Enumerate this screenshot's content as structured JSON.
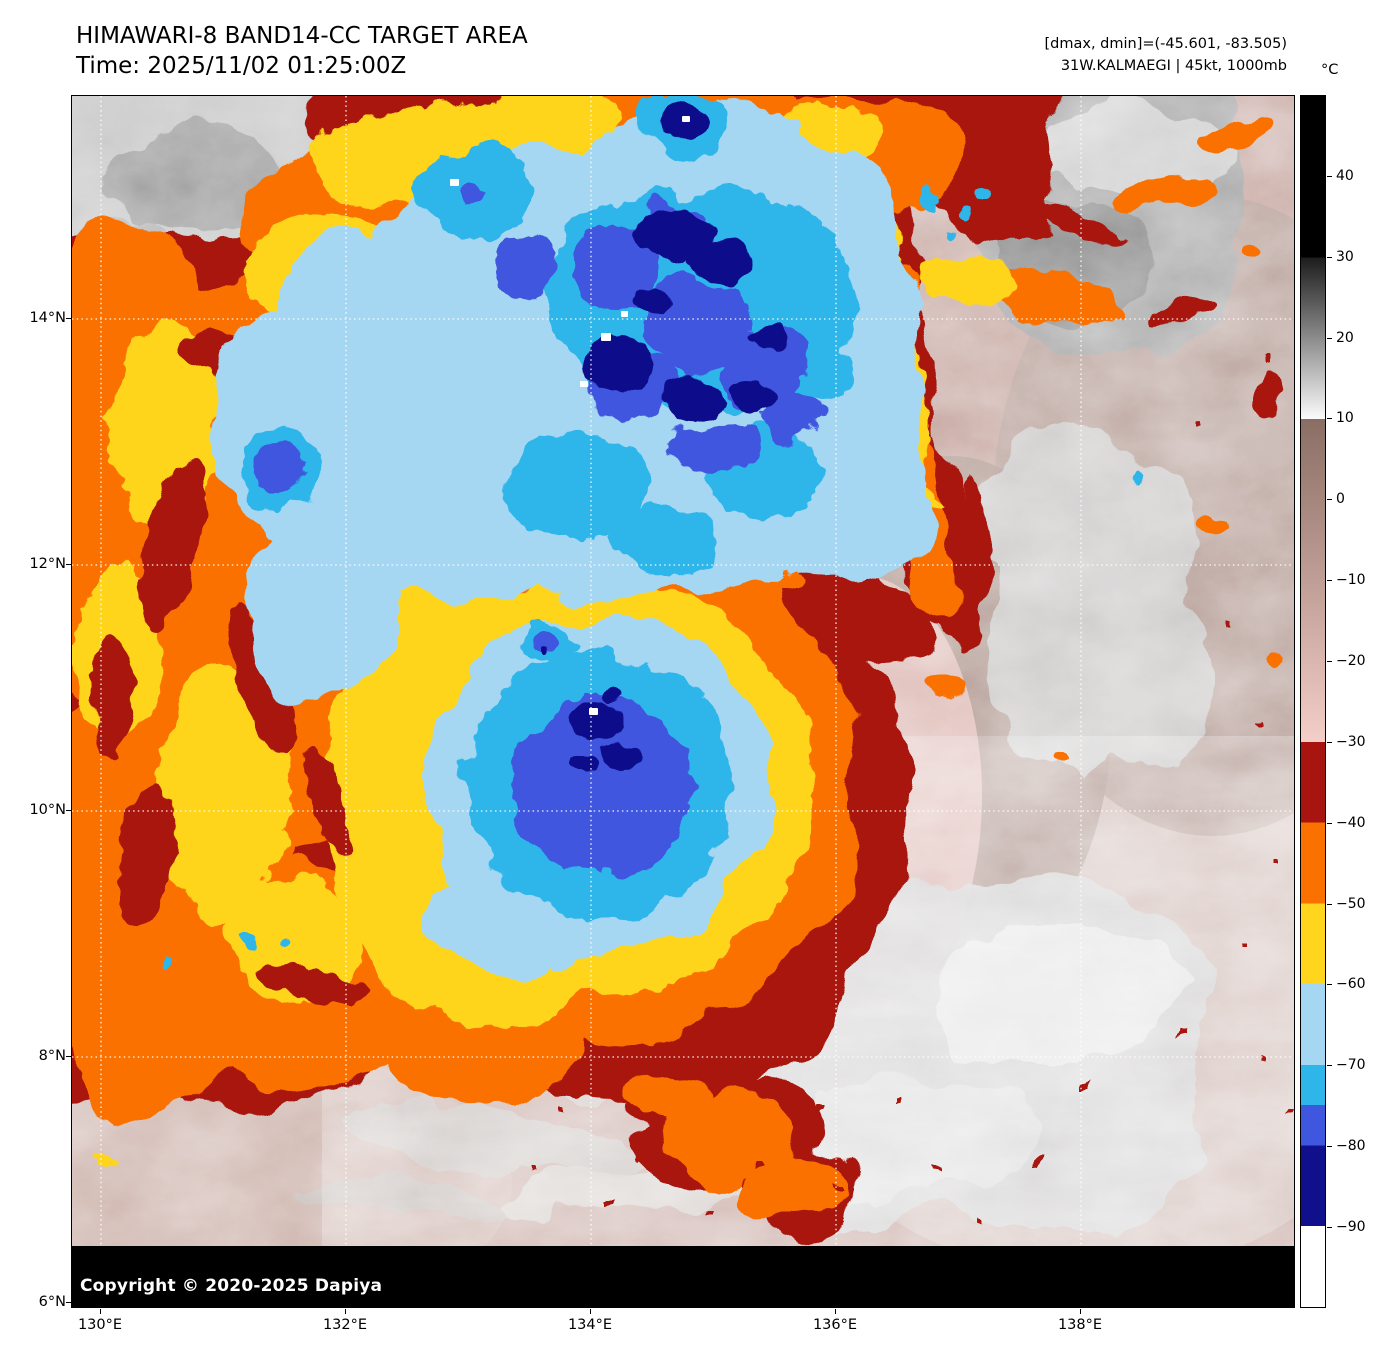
{
  "header": {
    "title_line1": "HIMAWARI-8 BAND14-CC TARGET AREA",
    "title_line2": "Time: 2025/11/02 01:25:00Z",
    "info_line1": "[dmax, dmin]=(-45.601, -83.505)",
    "info_line2": "31W.KALMAEGI | 45kt, 1000mb"
  },
  "map": {
    "copyright": "Copyright © 2020-2025 Dapiya"
  },
  "axes": {
    "x_ticks": [
      "130°E",
      "132°E",
      "134°E",
      "136°E",
      "138°E"
    ],
    "y_ticks": [
      "14°N",
      "12°N",
      "10°N",
      "8°N",
      "6°N"
    ]
  },
  "colorbar": {
    "unit": "°C",
    "ticks": [
      "40",
      "30",
      "20",
      "10",
      "0",
      "−10",
      "−20",
      "−30",
      "−40",
      "−50",
      "−60",
      "−70",
      "−80",
      "−90"
    ],
    "range_top_degC": 50,
    "range_bottom_degC": -100,
    "gradient_stops": [
      {
        "pct": 0.0,
        "color": "#000000"
      },
      {
        "pct": 13.33,
        "color": "#000000"
      },
      {
        "pct": 13.33,
        "color": "#1c1c1c"
      },
      {
        "pct": 26.67,
        "color": "#fbfbfb"
      },
      {
        "pct": 26.67,
        "color": "#8a6e64"
      },
      {
        "pct": 53.33,
        "color": "#f4cec8"
      },
      {
        "pct": 53.33,
        "color": "#a81410"
      },
      {
        "pct": 60.0,
        "color": "#a81410"
      },
      {
        "pct": 60.0,
        "color": "#fb7100"
      },
      {
        "pct": 66.67,
        "color": "#fb7100"
      },
      {
        "pct": 66.67,
        "color": "#ffd51e"
      },
      {
        "pct": 73.33,
        "color": "#ffd51e"
      },
      {
        "pct": 73.33,
        "color": "#a6d7f2"
      },
      {
        "pct": 80.0,
        "color": "#a6d7f2"
      },
      {
        "pct": 80.0,
        "color": "#2eb6ea"
      },
      {
        "pct": 83.33,
        "color": "#2eb6ea"
      },
      {
        "pct": 83.33,
        "color": "#3f56de"
      },
      {
        "pct": 86.67,
        "color": "#3f56de"
      },
      {
        "pct": 86.67,
        "color": "#10108c"
      },
      {
        "pct": 93.33,
        "color": "#10108c"
      },
      {
        "pct": 93.33,
        "color": "#ffffff"
      },
      {
        "pct": 100.0,
        "color": "#ffffff"
      }
    ]
  },
  "palette": {
    "background": "#ffffff",
    "text": "#000000",
    "grid": "#ffffff",
    "dark_red": "#a81410",
    "orange": "#fb7100",
    "yellow": "#ffd51e",
    "light_blue": "#a6d7f2",
    "cyan": "#2eb6ea",
    "royal_blue": "#3f56de",
    "navy": "#10108c",
    "coldest_white": "#ffffff",
    "warm_mauve": "#c2a099"
  }
}
